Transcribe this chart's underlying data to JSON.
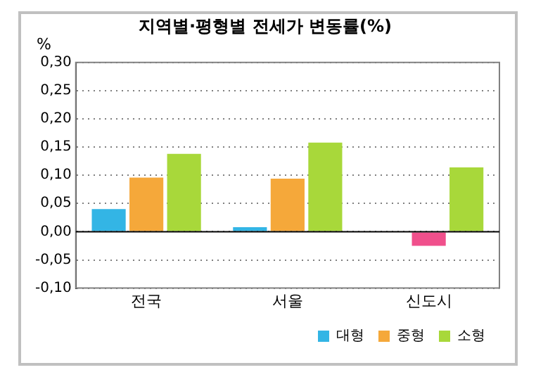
{
  "chart_data": {
    "type": "bar",
    "title": "지역별·평형별 전세가 변동률(%)",
    "ylabel": "%",
    "categories": [
      "전국",
      "서울",
      "신도시"
    ],
    "series": [
      {
        "name": "대형",
        "color": "#33b5e5",
        "values": [
          0.04,
          0.008,
          0
        ]
      },
      {
        "name": "중형",
        "color": "#f5a83a",
        "colors": [
          "#f5a83a",
          "#f5a83a",
          "#f0508c"
        ],
        "values": [
          0.096,
          0.094,
          -0.025
        ]
      },
      {
        "name": "소형",
        "color": "#a8d83a",
        "values": [
          0.138,
          0.158,
          0.114
        ]
      }
    ],
    "ylim": [
      -0.1,
      0.3
    ],
    "yticks": [
      {
        "value": -0.1,
        "label": "-0,10"
      },
      {
        "value": -0.05,
        "label": "-0,05"
      },
      {
        "value": 0,
        "label": "0,00"
      },
      {
        "value": 0.05,
        "label": "0,05"
      },
      {
        "value": 0.1,
        "label": "0,10"
      },
      {
        "value": 0.15,
        "label": "0,15"
      },
      {
        "value": 0.2,
        "label": "0,20"
      },
      {
        "value": 0.25,
        "label": "0,25"
      },
      {
        "value": 0.3,
        "label": "0,30"
      }
    ],
    "grid": "y",
    "legend": "bottom right"
  }
}
